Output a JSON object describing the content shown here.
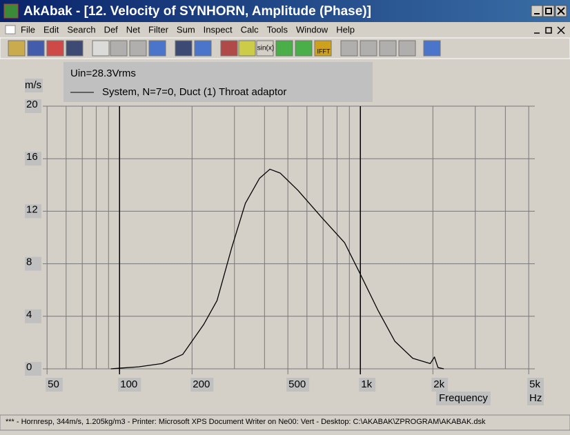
{
  "window": {
    "title": "AkAbak - [12. Velocity of SYNHORN, Amplitude (Phase)]"
  },
  "menu": [
    "File",
    "Edit",
    "Search",
    "Def",
    "Net",
    "Filter",
    "Sum",
    "Inspect",
    "Calc",
    "Tools",
    "Window",
    "Help"
  ],
  "toolbar": {
    "sin_button": "sin(x)",
    "ifft_button": "IFFT"
  },
  "chart_data": {
    "type": "line",
    "y_unit": "m/s",
    "x_label": "Frequency",
    "x_unit": "Hz",
    "annotation": "Uin=28.3Vrms",
    "x": [
      92,
      100,
      120,
      150,
      183,
      224,
      254,
      292,
      333,
      381,
      421,
      465,
      550,
      693,
      860,
      1000,
      1180,
      1390,
      1650,
      1950,
      2030,
      2100,
      2220
    ],
    "series": [
      {
        "name": "System, N=7=0, Duct (1) Throat adaptor",
        "color": "#000000",
        "values": [
          0,
          0.05,
          0.15,
          0.4,
          1.1,
          3.4,
          5.2,
          9.2,
          12.6,
          14.5,
          15.2,
          14.9,
          13.6,
          11.5,
          9.6,
          7.2,
          4.5,
          2.1,
          0.8,
          0.4,
          0.9,
          0.1,
          0
        ]
      }
    ],
    "x_log": true,
    "xlim": [
      48,
      5300
    ],
    "xticks": [
      50,
      100,
      200,
      500,
      {
        "value": 1000,
        "label": "1k"
      },
      {
        "value": 2000,
        "label": "2k"
      },
      {
        "value": 5000,
        "label": "5k"
      }
    ],
    "x_minor_ticks": [
      60,
      70,
      80,
      90,
      300,
      400,
      600,
      700,
      800,
      900,
      3000,
      4000
    ],
    "ylim": [
      0,
      20
    ],
    "yticks": [
      0,
      4,
      8,
      12,
      16,
      20
    ],
    "grid": true
  },
  "status_bar": "*** - Hornresp, 344m/s, 1.205kg/m3 - Printer: Microsoft XPS Document Writer on Ne00: Vert - Desktop: C:\\AKABAK\\ZPROGRAM\\AKABAK.dsk"
}
